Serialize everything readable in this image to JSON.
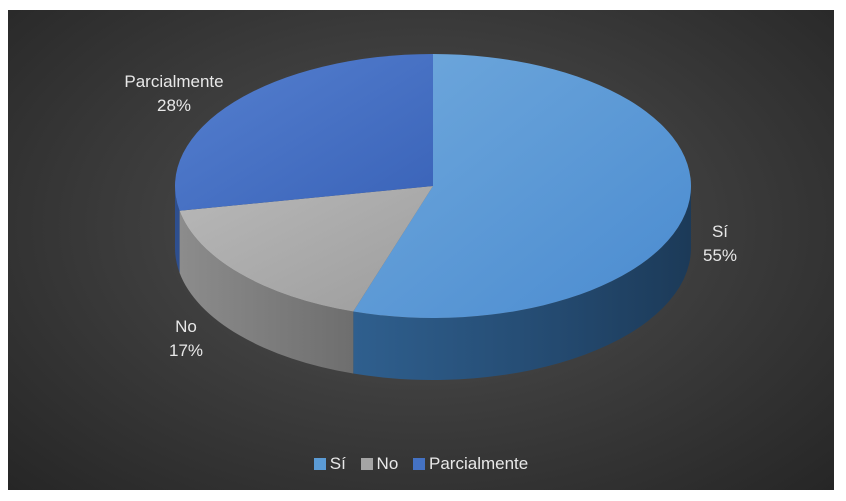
{
  "chart_data": {
    "type": "pie",
    "title": "",
    "slices": [
      {
        "label": "Sí",
        "value": 55,
        "value_label": "55%",
        "color": "#5b9bd5"
      },
      {
        "label": "No",
        "value": 17,
        "value_label": "17%",
        "color": "#a5a5a5"
      },
      {
        "label": "Parcialmente",
        "value": 28,
        "value_label": "28%",
        "color": "#4472c4"
      }
    ],
    "legend_position": "bottom",
    "background": "dark",
    "style": "3d"
  }
}
